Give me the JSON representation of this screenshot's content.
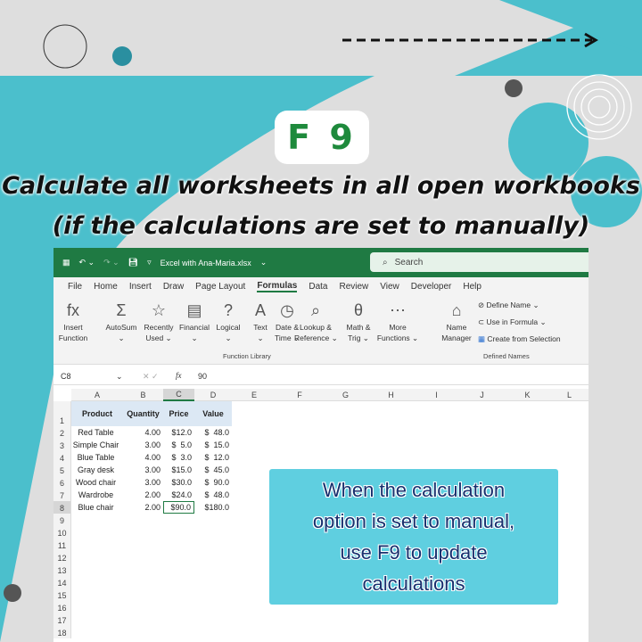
{
  "badge": "F 9",
  "headline": [
    "Calculate all worksheets in all open workbooks",
    "(if the calculations are set to manually)"
  ],
  "excel": {
    "filename": "Excel with Ana-Maria.xlsx",
    "search": "Search",
    "tabs": [
      "File",
      "Home",
      "Insert",
      "Draw",
      "Page Layout",
      "Formulas",
      "Data",
      "Review",
      "View",
      "Developer",
      "Help"
    ],
    "active_tab": "Formulas",
    "ribbon": {
      "function_library": [
        {
          "label": "Insert\nFunction",
          "icon": "fx"
        },
        {
          "label": "AutoSum\n⌄",
          "icon": "Σ"
        },
        {
          "label": "Recently\nUsed ⌄",
          "icon": "☆"
        },
        {
          "label": "Financial\n⌄",
          "icon": "▤"
        },
        {
          "label": "Logical\n⌄",
          "icon": "?"
        },
        {
          "label": "Text\n⌄",
          "icon": "A"
        },
        {
          "label": "Date &\nTime ⌄",
          "icon": "◷"
        },
        {
          "label": "Lookup &\nReference ⌄",
          "icon": "⌕"
        },
        {
          "label": "Math &\nTrig ⌄",
          "icon": "θ"
        },
        {
          "label": "More\nFunctions ⌄",
          "icon": "⋯"
        }
      ],
      "function_library_label": "Function Library",
      "name_manager": "Name\nManager",
      "define_name": "Define Name ⌄",
      "use_in_formula": "Use in Formula ⌄",
      "create_from_selection": "Create from Selection",
      "defined_names_label": "Defined Names"
    },
    "name_box": "C8",
    "formula": "90",
    "columns": [
      "A",
      "B",
      "C",
      "D",
      "E",
      "F",
      "G",
      "H",
      "I",
      "J",
      "K",
      "L"
    ],
    "headers": [
      "Product",
      "Quantity",
      "Price",
      "Value"
    ],
    "rows": [
      [
        "Red Table",
        "4.00",
        "$12.0",
        "$  48.0"
      ],
      [
        "Simple Chair",
        "3.00",
        "$  5.0",
        "$  15.0"
      ],
      [
        "Blue Table",
        "4.00",
        "$  3.0",
        "$  12.0"
      ],
      [
        "Gray desk",
        "3.00",
        "$15.0",
        "$  45.0"
      ],
      [
        "Wood chair",
        "3.00",
        "$30.0",
        "$  90.0"
      ],
      [
        "Wardrobe",
        "2.00",
        "$24.0",
        "$  48.0"
      ],
      [
        "Blue chair",
        "2.00",
        "$90.0",
        "$180.0"
      ]
    ],
    "row_numbers": [
      "1",
      "2",
      "3",
      "4",
      "5",
      "6",
      "7",
      "8",
      "9",
      "10",
      "11",
      "12",
      "13",
      "14",
      "15",
      "16",
      "17",
      "18"
    ]
  },
  "callout": [
    "When the calculation",
    "option is set to manual,",
    "use F9 to update",
    "calculations"
  ],
  "colors": {
    "teal": "#4bbfcc",
    "excel_green": "#1f7a43",
    "callout": "#5fcfe0"
  }
}
